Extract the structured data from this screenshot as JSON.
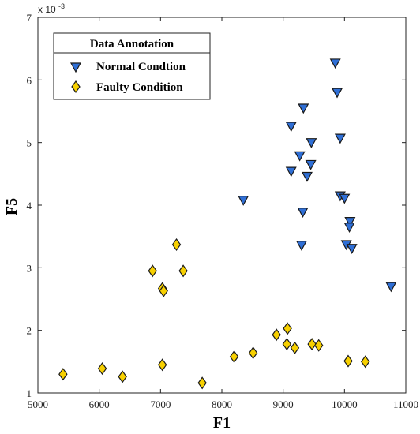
{
  "chart_data": {
    "type": "scatter",
    "xlabel": "F1",
    "ylabel": "F5",
    "y_exponent_label": "x 10",
    "y_exponent_power": "-3",
    "xlim": [
      5000,
      11000
    ],
    "ylim": [
      1,
      7
    ],
    "x_ticks": [
      5000,
      6000,
      7000,
      8000,
      9000,
      10000,
      11000
    ],
    "y_ticks": [
      1,
      2,
      3,
      4,
      5,
      6,
      7
    ],
    "grid": false,
    "legend": {
      "title": "Data Annotation",
      "placement": "top-left"
    },
    "series": [
      {
        "name": "Normal Condtion",
        "marker": "triangle-down",
        "color": "#2F6FD6",
        "edge": "#1a1a1a",
        "points": [
          [
            9850,
            6.27
          ],
          [
            9880,
            5.8
          ],
          [
            9330,
            5.55
          ],
          [
            9130,
            5.26
          ],
          [
            9930,
            5.07
          ],
          [
            9460,
            5.0
          ],
          [
            9270,
            4.79
          ],
          [
            9130,
            4.54
          ],
          [
            9450,
            4.65
          ],
          [
            9390,
            4.46
          ],
          [
            8350,
            4.08
          ],
          [
            9930,
            4.15
          ],
          [
            10000,
            4.11
          ],
          [
            9320,
            3.89
          ],
          [
            10090,
            3.74
          ],
          [
            10080,
            3.65
          ],
          [
            9300,
            3.36
          ],
          [
            10030,
            3.37
          ],
          [
            10120,
            3.31
          ],
          [
            10760,
            2.7
          ]
        ]
      },
      {
        "name": "Faulty Condition",
        "marker": "diamond",
        "color": "#F7D000",
        "edge": "#1a1a1a",
        "points": [
          [
            7260,
            3.37
          ],
          [
            6870,
            2.95
          ],
          [
            7370,
            2.95
          ],
          [
            7030,
            2.67
          ],
          [
            7050,
            2.63
          ],
          [
            9070,
            2.03
          ],
          [
            8890,
            1.93
          ],
          [
            9060,
            1.78
          ],
          [
            9190,
            1.72
          ],
          [
            9470,
            1.78
          ],
          [
            9580,
            1.76
          ],
          [
            8200,
            1.58
          ],
          [
            8510,
            1.64
          ],
          [
            10060,
            1.51
          ],
          [
            10340,
            1.5
          ],
          [
            7030,
            1.45
          ],
          [
            6050,
            1.39
          ],
          [
            5410,
            1.3
          ],
          [
            6380,
            1.26
          ],
          [
            7680,
            1.16
          ]
        ]
      }
    ]
  }
}
